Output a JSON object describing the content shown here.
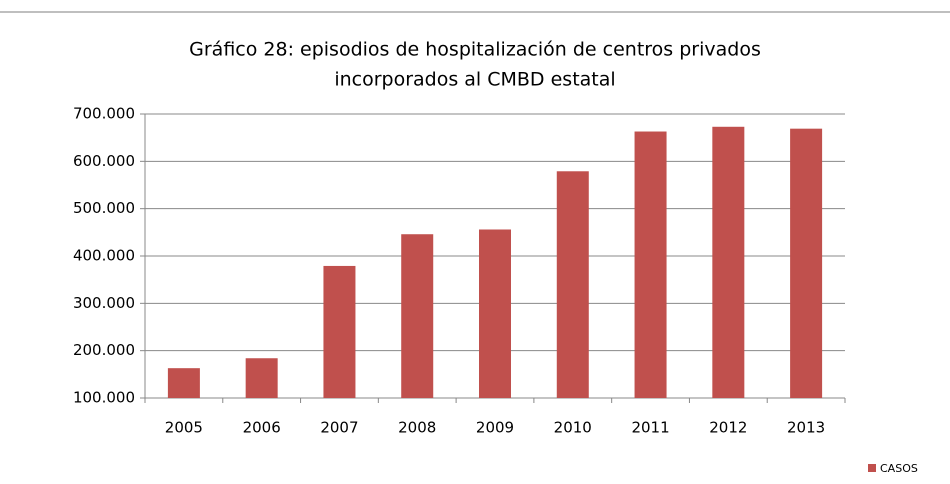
{
  "chart_data": {
    "type": "bar",
    "title": [
      "Gráfico 28:  episodios de hospitalización  de centros privados",
      "incorporados al CMBD estatal"
    ],
    "categories": [
      "2005",
      "2006",
      "2007",
      "2008",
      "2009",
      "2010",
      "2011",
      "2012",
      "2013"
    ],
    "series": [
      {
        "name": "CASOS",
        "color": "#c0504d",
        "values": [
          163000,
          184000,
          379000,
          446000,
          456000,
          579000,
          663000,
          673000,
          669000
        ]
      }
    ],
    "ylim": [
      100000,
      700000
    ],
    "yticks": [
      {
        "value": 100000,
        "label": "100.000"
      },
      {
        "value": 200000,
        "label": "200.000"
      },
      {
        "value": 300000,
        "label": "300.000"
      },
      {
        "value": 400000,
        "label": "400.000"
      },
      {
        "value": 500000,
        "label": "500.000"
      },
      {
        "value": 600000,
        "label": "600.000"
      },
      {
        "value": 700000,
        "label": "700.000"
      }
    ],
    "grid": true,
    "legend": "bottom-right"
  }
}
